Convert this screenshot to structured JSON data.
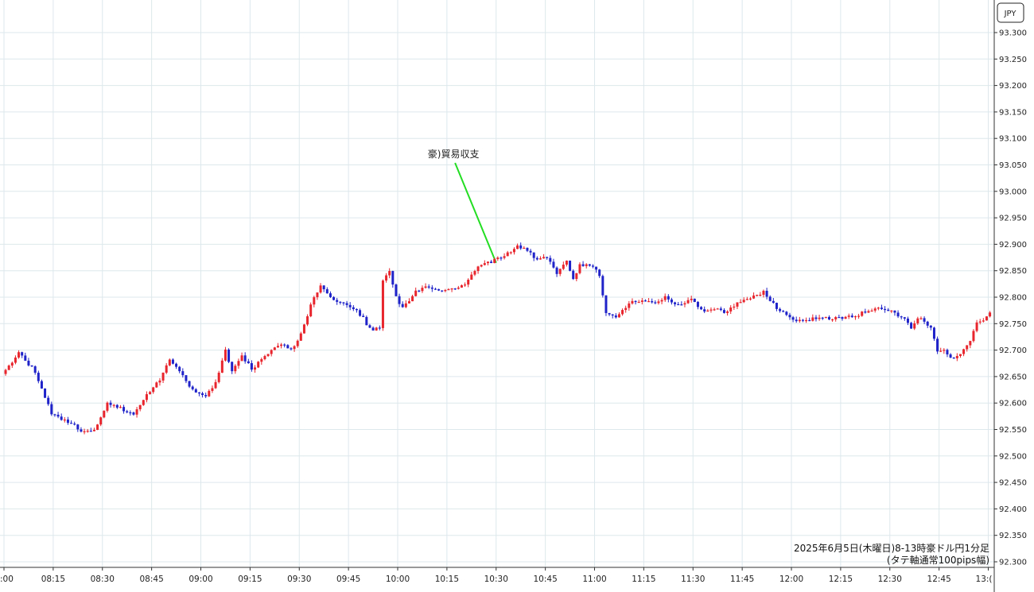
{
  "chart_data": {
    "type": "candlestick",
    "unit_label": "JPY",
    "ylim": [
      92.3,
      93.32
    ],
    "y_ticks": [
      "92.300",
      "92.350",
      "92.400",
      "92.450",
      "92.500",
      "92.550",
      "92.600",
      "92.650",
      "92.700",
      "92.750",
      "92.800",
      "92.850",
      "92.900",
      "92.950",
      "93.000",
      "93.050",
      "93.100",
      "93.150",
      "93.200",
      "93.250",
      "93.300"
    ],
    "x_ticks": [
      ":00",
      "08:15",
      "08:30",
      "08:45",
      "09:00",
      "09:15",
      "09:30",
      "09:45",
      "10:00",
      "10:15",
      "10:30",
      "10:45",
      "11:00",
      "11:15",
      "11:30",
      "11:45",
      "12:00",
      "12:15",
      "12:30",
      "12:45",
      "13:("
    ],
    "x_tick_minutes": [
      480,
      495,
      510,
      525,
      540,
      555,
      570,
      585,
      600,
      615,
      630,
      645,
      660,
      675,
      690,
      705,
      720,
      735,
      750,
      765,
      780
    ],
    "x_range_minutes": [
      480,
      780.6
    ],
    "grid": true,
    "colors": {
      "up": "#e8242c",
      "down": "#1e22c8",
      "annotation_line": "#22dd22"
    },
    "annotation": {
      "text": "豪)貿易収支",
      "time_minute": 630,
      "price": 92.865
    },
    "caption_line1": "2025年6月5日(木曜日)8-13時豪ドル円1分足",
    "caption_line2": "(タテ軸通常100pips幅)",
    "keypoints": [
      [
        480,
        92.655
      ],
      [
        485,
        92.695
      ],
      [
        490,
        92.66
      ],
      [
        495,
        92.58
      ],
      [
        500,
        92.565
      ],
      [
        505,
        92.545
      ],
      [
        508,
        92.548
      ],
      [
        512,
        92.6
      ],
      [
        516,
        92.59
      ],
      [
        520,
        92.58
      ],
      [
        524,
        92.615
      ],
      [
        528,
        92.645
      ],
      [
        531,
        92.685
      ],
      [
        534,
        92.66
      ],
      [
        538,
        92.625
      ],
      [
        542,
        92.61
      ],
      [
        545,
        92.64
      ],
      [
        548,
        92.7
      ],
      [
        550,
        92.66
      ],
      [
        553,
        92.69
      ],
      [
        556,
        92.665
      ],
      [
        559,
        92.68
      ],
      [
        562,
        92.7
      ],
      [
        565,
        92.71
      ],
      [
        568,
        92.7
      ],
      [
        571,
        92.73
      ],
      [
        574,
        92.785
      ],
      [
        577,
        92.825
      ],
      [
        580,
        92.8
      ],
      [
        583,
        92.79
      ],
      [
        587,
        92.78
      ],
      [
        590,
        92.76
      ],
      [
        592,
        92.74
      ],
      [
        595,
        92.74
      ],
      [
        596,
        92.83
      ],
      [
        598,
        92.85
      ],
      [
        600,
        92.8
      ],
      [
        602,
        92.78
      ],
      [
        606,
        92.81
      ],
      [
        610,
        92.82
      ],
      [
        614,
        92.81
      ],
      [
        618,
        92.815
      ],
      [
        622,
        92.83
      ],
      [
        625,
        92.86
      ],
      [
        629,
        92.866
      ],
      [
        633,
        92.88
      ],
      [
        637,
        92.895
      ],
      [
        640,
        92.89
      ],
      [
        643,
        92.87
      ],
      [
        646,
        92.875
      ],
      [
        649,
        92.845
      ],
      [
        652,
        92.87
      ],
      [
        654,
        92.835
      ],
      [
        656,
        92.86
      ],
      [
        660,
        92.86
      ],
      [
        662,
        92.84
      ],
      [
        664,
        92.77
      ],
      [
        667,
        92.76
      ],
      [
        671,
        92.79
      ],
      [
        675,
        92.795
      ],
      [
        679,
        92.79
      ],
      [
        682,
        92.8
      ],
      [
        686,
        92.785
      ],
      [
        690,
        92.798
      ],
      [
        694,
        92.77
      ],
      [
        697,
        92.78
      ],
      [
        700,
        92.77
      ],
      [
        704,
        92.79
      ],
      [
        708,
        92.8
      ],
      [
        712,
        92.81
      ],
      [
        716,
        92.78
      ],
      [
        720,
        92.76
      ],
      [
        724,
        92.755
      ],
      [
        728,
        92.76
      ],
      [
        732,
        92.76
      ],
      [
        736,
        92.76
      ],
      [
        740,
        92.765
      ],
      [
        744,
        92.775
      ],
      [
        748,
        92.78
      ],
      [
        752,
        92.77
      ],
      [
        755,
        92.76
      ],
      [
        757,
        92.74
      ],
      [
        759,
        92.76
      ],
      [
        761,
        92.755
      ],
      [
        763,
        92.74
      ],
      [
        765,
        92.7
      ],
      [
        767,
        92.7
      ],
      [
        769,
        92.685
      ],
      [
        771,
        92.69
      ],
      [
        773,
        92.7
      ],
      [
        775,
        92.72
      ],
      [
        777,
        92.755
      ],
      [
        779,
        92.755
      ],
      [
        780.6,
        92.77
      ]
    ]
  }
}
